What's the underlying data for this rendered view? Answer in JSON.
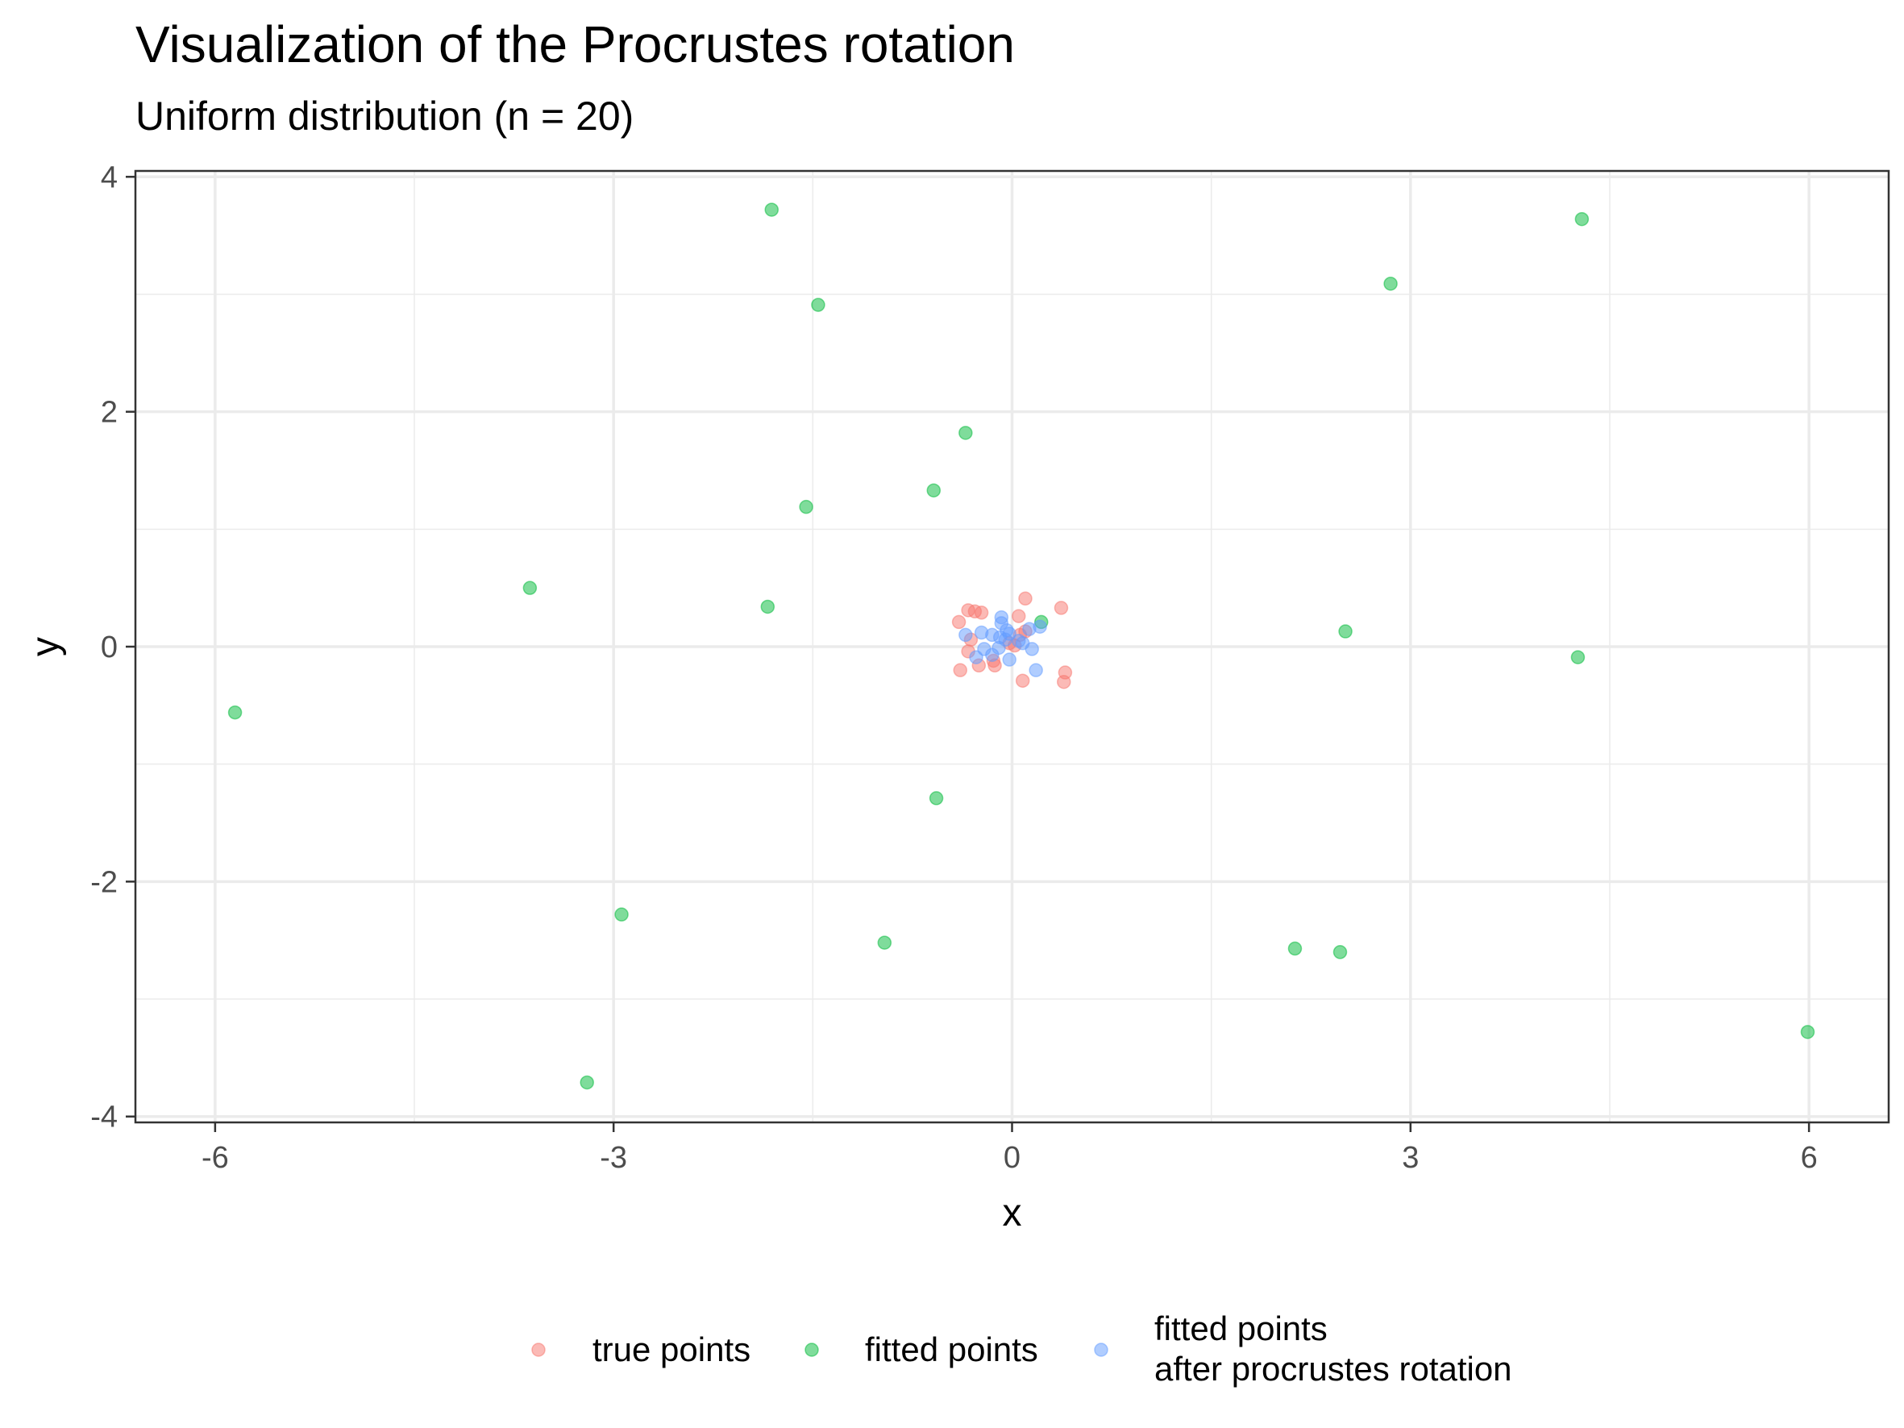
{
  "chart_data": {
    "type": "scatter",
    "title": "Visualization of the Procrustes rotation",
    "subtitle": "Uniform distribution (n = 20)",
    "xlabel": "x",
    "ylabel": "y",
    "xlim": [
      -6.6,
      6.6
    ],
    "ylim": [
      -4.05,
      4.05
    ],
    "x_ticks": [
      -6,
      -3,
      0,
      3,
      6
    ],
    "y_ticks": [
      4,
      2,
      0,
      -2,
      -4
    ],
    "x_tick_labels": [
      "-6",
      "-3",
      "0",
      "3",
      "6"
    ],
    "y_tick_labels": [
      "4",
      "2",
      "0",
      "-2",
      "-4"
    ],
    "grid": true,
    "legend_position": "bottom",
    "series": [
      {
        "name": "true points",
        "color": "#F8766D",
        "points": [
          [
            -0.33,
            0.31
          ],
          [
            -0.23,
            0.29
          ],
          [
            -0.28,
            0.3
          ],
          [
            0.1,
            0.41
          ],
          [
            0.37,
            0.33
          ],
          [
            -0.4,
            0.21
          ],
          [
            0.05,
            0.26
          ],
          [
            0.1,
            0.13
          ],
          [
            0.06,
            0.1
          ],
          [
            -0.02,
            0.03
          ],
          [
            -0.31,
            0.06
          ],
          [
            -0.33,
            -0.04
          ],
          [
            -0.25,
            -0.16
          ],
          [
            -0.14,
            -0.12
          ],
          [
            -0.13,
            -0.16
          ],
          [
            -0.39,
            -0.2
          ],
          [
            0.08,
            -0.29
          ],
          [
            0.4,
            -0.22
          ],
          [
            0.39,
            -0.3
          ],
          [
            0.02,
            0.01
          ]
        ]
      },
      {
        "name": "fitted points",
        "color": "#00BA38",
        "points": [
          [
            -1.81,
            3.72
          ],
          [
            -1.46,
            2.91
          ],
          [
            4.29,
            3.64
          ],
          [
            2.85,
            3.09
          ],
          [
            -0.35,
            1.82
          ],
          [
            -0.59,
            1.33
          ],
          [
            -1.55,
            1.19
          ],
          [
            -3.63,
            0.5
          ],
          [
            -1.84,
            0.34
          ],
          [
            0.22,
            0.21
          ],
          [
            2.51,
            0.13
          ],
          [
            4.26,
            -0.09
          ],
          [
            -5.85,
            -0.56
          ],
          [
            -0.57,
            -1.29
          ],
          [
            -2.94,
            -2.28
          ],
          [
            -0.96,
            -2.52
          ],
          [
            2.13,
            -2.57
          ],
          [
            2.47,
            -2.6
          ],
          [
            -3.2,
            -3.71
          ],
          [
            5.99,
            -3.28
          ]
        ]
      },
      {
        "name": "fitted points\nafter procrustes rotation",
        "label_lines": [
          "fitted points",
          "after procrustes rotation"
        ],
        "color": "#619CFF",
        "points": [
          [
            -0.08,
            0.25
          ],
          [
            -0.08,
            0.2
          ],
          [
            -0.04,
            0.14
          ],
          [
            -0.02,
            0.11
          ],
          [
            0.13,
            0.15
          ],
          [
            0.21,
            0.17
          ],
          [
            -0.15,
            0.1
          ],
          [
            -0.23,
            0.12
          ],
          [
            -0.09,
            0.08
          ],
          [
            -0.35,
            0.1
          ],
          [
            -0.05,
            0.06
          ],
          [
            0.05,
            0.05
          ],
          [
            0.08,
            0.03
          ],
          [
            -0.21,
            -0.02
          ],
          [
            -0.1,
            -0.01
          ],
          [
            0.15,
            -0.02
          ],
          [
            -0.15,
            -0.07
          ],
          [
            -0.27,
            -0.09
          ],
          [
            -0.02,
            -0.11
          ],
          [
            0.18,
            -0.2
          ]
        ]
      }
    ]
  }
}
